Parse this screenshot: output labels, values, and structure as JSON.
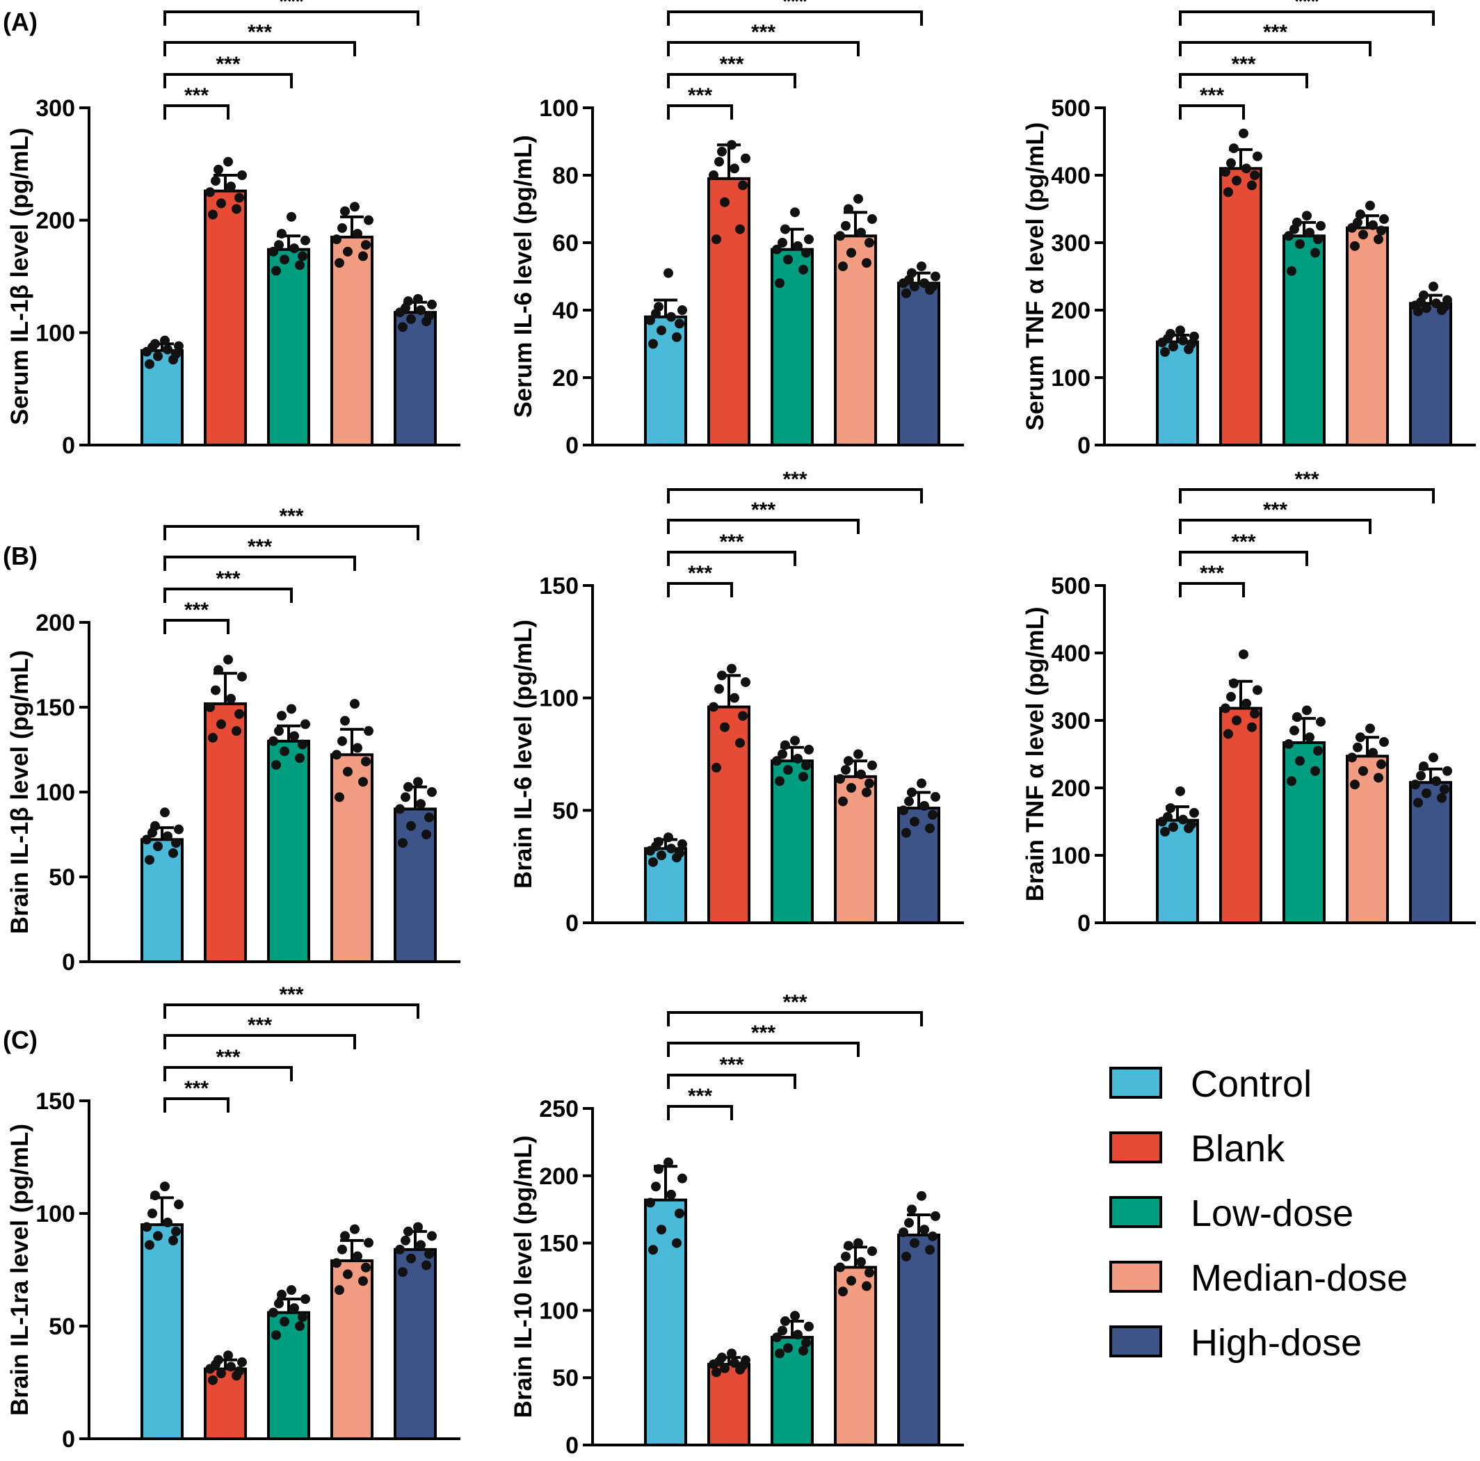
{
  "panel_labels": [
    "(A)",
    "(B)",
    "(C)"
  ],
  "colors": {
    "Control": "#4BBAD8",
    "Blank": "#E64B35",
    "Low-dose": "#009E80",
    "Median-dose": "#F29C81",
    "High-dose": "#3C5488"
  },
  "legend": {
    "entries": [
      "Control",
      "Blank",
      "Low-dose",
      "Median-dose",
      "High-dose"
    ],
    "position": "bottom-right"
  },
  "chart_data": [
    {
      "panel": "(A)",
      "type": "bar",
      "categories": [
        "Control",
        "Blank",
        "Low-dose",
        "Median-dose",
        "High-dose"
      ],
      "ylabel": "Serum IL-1β level  (pg/mL)",
      "ylim": [
        0,
        300
      ],
      "yticks": [
        0,
        100,
        200,
        300
      ],
      "values": [
        84,
        226,
        174,
        185,
        118
      ],
      "sd": [
        6,
        14,
        12,
        18,
        9
      ],
      "points": [
        [
          72,
          76,
          79,
          81,
          83,
          85,
          87,
          88,
          90,
          93
        ],
        [
          205,
          210,
          215,
          220,
          225,
          230,
          235,
          240,
          245,
          252
        ],
        [
          155,
          160,
          165,
          168,
          172,
          175,
          178,
          182,
          188,
          203
        ],
        [
          162,
          168,
          172,
          178,
          183,
          188,
          193,
          200,
          208,
          212
        ],
        [
          105,
          110,
          112,
          115,
          118,
          120,
          122,
          125,
          128,
          130
        ]
      ],
      "significance": [
        {
          "from": 0,
          "to": 1,
          "label": "***"
        },
        {
          "from": 0,
          "to": 2,
          "label": "***"
        },
        {
          "from": 0,
          "to": 3,
          "label": "***"
        },
        {
          "from": 0,
          "to": 4,
          "label": "***"
        }
      ]
    },
    {
      "panel": "",
      "type": "bar",
      "categories": [
        "Control",
        "Blank",
        "Low-dose",
        "Median-dose",
        "High-dose"
      ],
      "ylabel": "Serum IL-6 level  (pg/mL)",
      "ylim": [
        0,
        100
      ],
      "yticks": [
        0,
        20,
        40,
        60,
        80,
        100
      ],
      "values": [
        38,
        79,
        58,
        62,
        48
      ],
      "sd": [
        5,
        10,
        6,
        7,
        3
      ],
      "points": [
        [
          30,
          32,
          34,
          36,
          37,
          38,
          39,
          40,
          41,
          51
        ],
        [
          61,
          64,
          72,
          77,
          80,
          82,
          84,
          85,
          87,
          89
        ],
        [
          48,
          52,
          55,
          57,
          58,
          59,
          60,
          61,
          64,
          69
        ],
        [
          53,
          54,
          57,
          60,
          62,
          63,
          65,
          67,
          70,
          73
        ],
        [
          45,
          46,
          47,
          47,
          48,
          48,
          49,
          50,
          51,
          53
        ]
      ],
      "significance": [
        {
          "from": 0,
          "to": 1,
          "label": "***"
        },
        {
          "from": 0,
          "to": 2,
          "label": "***"
        },
        {
          "from": 0,
          "to": 3,
          "label": "***"
        },
        {
          "from": 0,
          "to": 4,
          "label": "***"
        }
      ]
    },
    {
      "panel": "",
      "type": "bar",
      "categories": [
        "Control",
        "Blank",
        "Low-dose",
        "Median-dose",
        "High-dose"
      ],
      "ylabel": "Serum TNF α level  (pg/mL)",
      "ylim": [
        0,
        500
      ],
      "yticks": [
        0,
        100,
        200,
        300,
        400,
        500
      ],
      "values": [
        153,
        410,
        310,
        322,
        210
      ],
      "sd": [
        10,
        28,
        20,
        18,
        12
      ],
      "points": [
        [
          138,
          142,
          146,
          150,
          152,
          155,
          158,
          161,
          165,
          170
        ],
        [
          375,
          385,
          392,
          400,
          405,
          410,
          418,
          428,
          440,
          462
        ],
        [
          258,
          285,
          298,
          305,
          310,
          315,
          320,
          325,
          330,
          340
        ],
        [
          295,
          305,
          312,
          318,
          322,
          326,
          330,
          335,
          342,
          355
        ],
        [
          198,
          200,
          203,
          205,
          207,
          210,
          212,
          215,
          222,
          235
        ]
      ],
      "significance": [
        {
          "from": 0,
          "to": 1,
          "label": "***"
        },
        {
          "from": 0,
          "to": 2,
          "label": "***"
        },
        {
          "from": 0,
          "to": 3,
          "label": "***"
        },
        {
          "from": 0,
          "to": 4,
          "label": "***"
        }
      ]
    },
    {
      "panel": "(B)",
      "type": "bar",
      "categories": [
        "Control",
        "Blank",
        "Low-dose",
        "Median-dose",
        "High-dose"
      ],
      "ylabel": "Brain IL-1β level  (pg/mL)",
      "ylim": [
        0,
        200
      ],
      "yticks": [
        0,
        50,
        100,
        150,
        200
      ],
      "values": [
        72,
        152,
        130,
        122,
        90
      ],
      "sd": [
        7,
        18,
        9,
        15,
        13
      ],
      "points": [
        [
          60,
          64,
          68,
          70,
          72,
          74,
          76,
          78,
          80,
          88
        ],
        [
          132,
          136,
          140,
          146,
          150,
          155,
          160,
          168,
          172,
          178
        ],
        [
          116,
          120,
          124,
          128,
          130,
          133,
          136,
          140,
          145,
          149
        ],
        [
          97,
          106,
          112,
          118,
          122,
          126,
          130,
          136,
          142,
          152
        ],
        [
          70,
          75,
          80,
          85,
          90,
          93,
          97,
          100,
          103,
          106
        ]
      ],
      "significance": [
        {
          "from": 0,
          "to": 1,
          "label": "***"
        },
        {
          "from": 0,
          "to": 2,
          "label": "***"
        },
        {
          "from": 0,
          "to": 3,
          "label": "***"
        },
        {
          "from": 0,
          "to": 4,
          "label": "***"
        }
      ]
    },
    {
      "panel": "",
      "type": "bar",
      "categories": [
        "Control",
        "Blank",
        "Low-dose",
        "Median-dose",
        "High-dose"
      ],
      "ylabel": "Brain IL-6 level (pg/mL)",
      "ylim": [
        0,
        150
      ],
      "yticks": [
        0,
        50,
        100,
        150
      ],
      "values": [
        33,
        96,
        72,
        65,
        51
      ],
      "sd": [
        4,
        14,
        6,
        7,
        7
      ],
      "points": [
        [
          27,
          29,
          30,
          31,
          32,
          33,
          34,
          35,
          36,
          38
        ],
        [
          69,
          80,
          87,
          92,
          96,
          100,
          104,
          107,
          110,
          113
        ],
        [
          63,
          65,
          68,
          70,
          72,
          73,
          75,
          77,
          79,
          81
        ],
        [
          54,
          58,
          60,
          62,
          64,
          66,
          68,
          70,
          72,
          75
        ],
        [
          40,
          42,
          45,
          48,
          50,
          52,
          54,
          56,
          58,
          62
        ]
      ],
      "significance": [
        {
          "from": 0,
          "to": 1,
          "label": "***"
        },
        {
          "from": 0,
          "to": 2,
          "label": "***"
        },
        {
          "from": 0,
          "to": 3,
          "label": "***"
        },
        {
          "from": 0,
          "to": 4,
          "label": "***"
        }
      ]
    },
    {
      "panel": "",
      "type": "bar",
      "categories": [
        "Control",
        "Blank",
        "Low-dose",
        "Median-dose",
        "High-dose"
      ],
      "ylabel": "Brain TNF α level (pg/mL)",
      "ylim": [
        0,
        500
      ],
      "yticks": [
        0,
        100,
        200,
        300,
        400,
        500
      ],
      "values": [
        152,
        318,
        267,
        247,
        208
      ],
      "sd": [
        20,
        40,
        36,
        28,
        20
      ],
      "points": [
        [
          135,
          140,
          142,
          146,
          150,
          153,
          157,
          163,
          170,
          195
        ],
        [
          280,
          290,
          300,
          310,
          318,
          325,
          335,
          345,
          355,
          398
        ],
        [
          210,
          225,
          240,
          255,
          265,
          275,
          285,
          298,
          305,
          315
        ],
        [
          205,
          215,
          225,
          235,
          245,
          252,
          260,
          268,
          275,
          288
        ],
        [
          178,
          185,
          192,
          198,
          205,
          210,
          218,
          225,
          232,
          245
        ]
      ],
      "significance": [
        {
          "from": 0,
          "to": 1,
          "label": "***"
        },
        {
          "from": 0,
          "to": 2,
          "label": "***"
        },
        {
          "from": 0,
          "to": 3,
          "label": "***"
        },
        {
          "from": 0,
          "to": 4,
          "label": "***"
        }
      ]
    },
    {
      "panel": "(C)",
      "type": "bar",
      "categories": [
        "Control",
        "Blank",
        "Low-dose",
        "Median-dose",
        "High-dose"
      ],
      "ylabel": "Brain IL-1ra level (pg/mL)",
      "ylim": [
        0,
        150
      ],
      "yticks": [
        0,
        50,
        100,
        150
      ],
      "values": [
        95,
        31,
        56,
        79,
        84
      ],
      "sd": [
        12,
        4,
        6,
        9,
        8
      ],
      "points": [
        [
          86,
          88,
          90,
          92,
          94,
          96,
          100,
          104,
          108,
          112
        ],
        [
          26,
          28,
          29,
          30,
          31,
          32,
          33,
          34,
          35,
          37
        ],
        [
          46,
          50,
          52,
          54,
          56,
          58,
          60,
          62,
          64,
          66
        ],
        [
          66,
          70,
          73,
          76,
          78,
          81,
          84,
          87,
          90,
          93
        ],
        [
          74,
          77,
          80,
          82,
          84,
          86,
          88,
          90,
          92,
          94
        ]
      ],
      "significance": [
        {
          "from": 0,
          "to": 1,
          "label": "***"
        },
        {
          "from": 0,
          "to": 2,
          "label": "***"
        },
        {
          "from": 0,
          "to": 3,
          "label": "***"
        },
        {
          "from": 0,
          "to": 4,
          "label": "***"
        }
      ]
    },
    {
      "panel": "",
      "type": "bar",
      "categories": [
        "Control",
        "Blank",
        "Low-dose",
        "Median-dose",
        "High-dose"
      ],
      "ylabel": "Brain IL-10 level (pg/mL)",
      "ylim": [
        0,
        250
      ],
      "yticks": [
        0,
        50,
        100,
        150,
        200,
        250
      ],
      "values": [
        182,
        60,
        80,
        132,
        156
      ],
      "sd": [
        25,
        5,
        12,
        15,
        15
      ],
      "points": [
        [
          145,
          150,
          160,
          172,
          180,
          186,
          192,
          198,
          205,
          210
        ],
        [
          54,
          56,
          57,
          59,
          60,
          61,
          62,
          63,
          65,
          68
        ],
        [
          68,
          70,
          72,
          76,
          80,
          82,
          85,
          88,
          92,
          96
        ],
        [
          114,
          118,
          122,
          128,
          132,
          136,
          140,
          144,
          148,
          150
        ],
        [
          140,
          145,
          150,
          155,
          158,
          160,
          165,
          170,
          175,
          185
        ]
      ],
      "significance": [
        {
          "from": 0,
          "to": 1,
          "label": "***"
        },
        {
          "from": 0,
          "to": 2,
          "label": "***"
        },
        {
          "from": 0,
          "to": 3,
          "label": "***"
        },
        {
          "from": 0,
          "to": 4,
          "label": "***"
        }
      ]
    }
  ]
}
